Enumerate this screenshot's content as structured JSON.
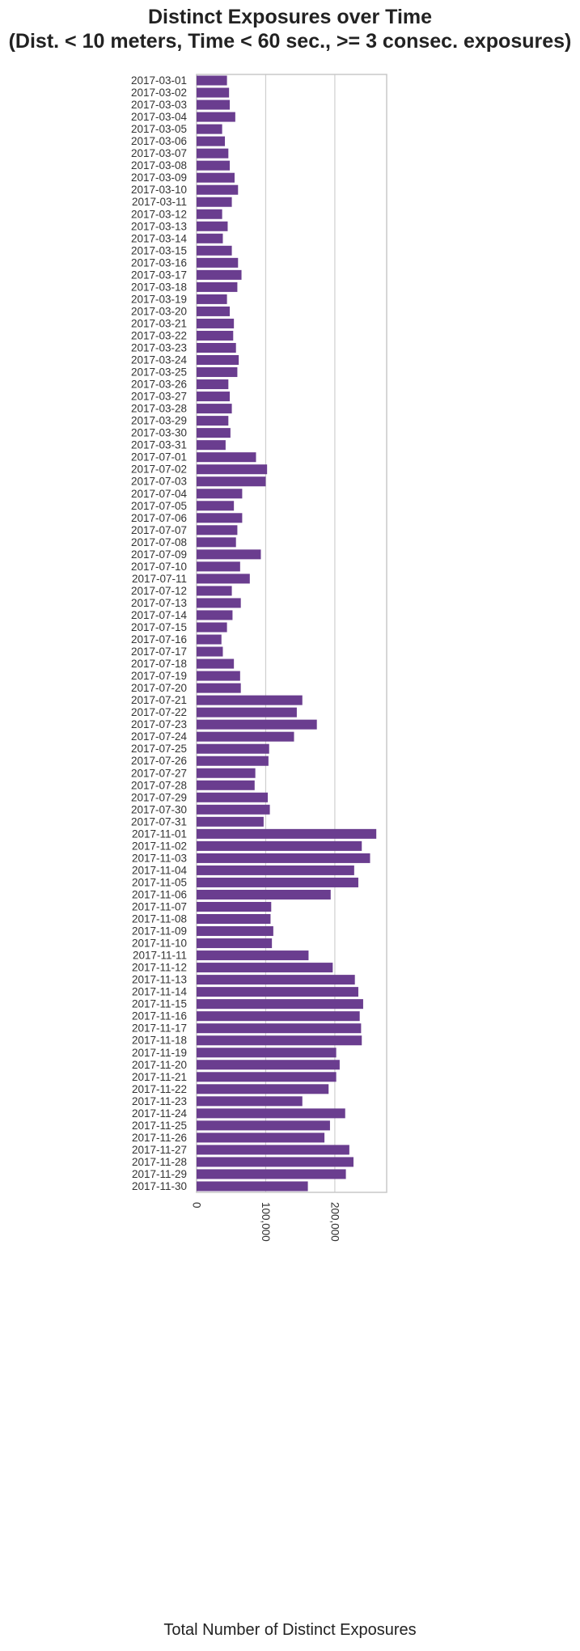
{
  "chart_data": {
    "type": "bar",
    "orientation": "horizontal",
    "title": "Distinct Exposures over Time",
    "subtitle": "(Dist. < 10 meters, Time < 60 sec., >= 3 consec. exposures)",
    "xlabel": "Total Number of Distinct Exposures",
    "ylabel": "",
    "xlim": [
      0,
      275000
    ],
    "xticks": [
      0,
      100000,
      200000
    ],
    "xtick_labels": [
      "0",
      "100,000",
      "200,000"
    ],
    "grid": "vertical",
    "bar_color": "#6a3d8f",
    "categories": [
      "2017-03-01",
      "2017-03-02",
      "2017-03-03",
      "2017-03-04",
      "2017-03-05",
      "2017-03-06",
      "2017-03-07",
      "2017-03-08",
      "2017-03-09",
      "2017-03-10",
      "2017-03-11",
      "2017-03-12",
      "2017-03-13",
      "2017-03-14",
      "2017-03-15",
      "2017-03-16",
      "2017-03-17",
      "2017-03-18",
      "2017-03-19",
      "2017-03-20",
      "2017-03-21",
      "2017-03-22",
      "2017-03-23",
      "2017-03-24",
      "2017-03-25",
      "2017-03-26",
      "2017-03-27",
      "2017-03-28",
      "2017-03-29",
      "2017-03-30",
      "2017-03-31",
      "2017-07-01",
      "2017-07-02",
      "2017-07-03",
      "2017-07-04",
      "2017-07-05",
      "2017-07-06",
      "2017-07-07",
      "2017-07-08",
      "2017-07-09",
      "2017-07-10",
      "2017-07-11",
      "2017-07-12",
      "2017-07-13",
      "2017-07-14",
      "2017-07-15",
      "2017-07-16",
      "2017-07-17",
      "2017-07-18",
      "2017-07-19",
      "2017-07-20",
      "2017-07-21",
      "2017-07-22",
      "2017-07-23",
      "2017-07-24",
      "2017-07-25",
      "2017-07-26",
      "2017-07-27",
      "2017-07-28",
      "2017-07-29",
      "2017-07-30",
      "2017-07-31",
      "2017-11-01",
      "2017-11-02",
      "2017-11-03",
      "2017-11-04",
      "2017-11-05",
      "2017-11-06",
      "2017-11-07",
      "2017-11-08",
      "2017-11-09",
      "2017-11-10",
      "2017-11-11",
      "2017-11-12",
      "2017-11-13",
      "2017-11-14",
      "2017-11-15",
      "2017-11-16",
      "2017-11-17",
      "2017-11-18",
      "2017-11-19",
      "2017-11-20",
      "2017-11-21",
      "2017-11-22",
      "2017-11-23",
      "2017-11-24",
      "2017-11-25",
      "2017-11-26",
      "2017-11-27",
      "2017-11-28",
      "2017-11-29",
      "2017-11-30"
    ],
    "values": [
      44000,
      47000,
      48000,
      56000,
      37000,
      41000,
      46000,
      48000,
      55000,
      60000,
      51000,
      37000,
      45000,
      38000,
      51000,
      60000,
      65000,
      59000,
      44000,
      48000,
      54000,
      53000,
      57000,
      61000,
      59000,
      46000,
      48000,
      51000,
      46000,
      49000,
      42000,
      86000,
      102000,
      100000,
      66000,
      54000,
      66000,
      59000,
      57000,
      93000,
      63000,
      77000,
      51000,
      64000,
      52000,
      44000,
      36000,
      38000,
      54000,
      63000,
      64000,
      153000,
      145000,
      174000,
      141000,
      105000,
      104000,
      85000,
      84000,
      103000,
      106000,
      97000,
      260000,
      239000,
      251000,
      228000,
      234000,
      194000,
      108000,
      107000,
      111000,
      109000,
      162000,
      197000,
      229000,
      234000,
      241000,
      236000,
      238000,
      239000,
      202000,
      207000,
      202000,
      191000,
      153000,
      215000,
      193000,
      185000,
      221000,
      227000,
      216000,
      161000
    ]
  }
}
